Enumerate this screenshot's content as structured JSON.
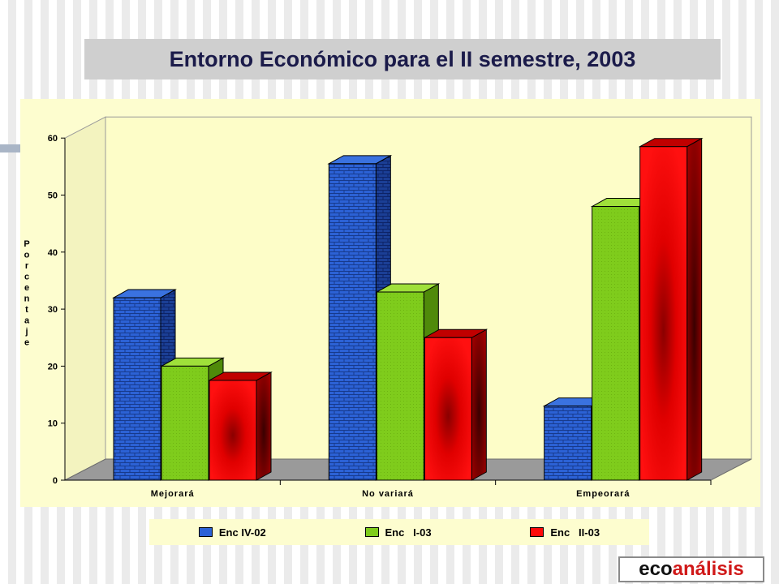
{
  "title": "Entorno Económico para el II semestre, 2003",
  "logo": {
    "part1": "eco",
    "part2": "análisis"
  },
  "colors": {
    "title_bg": "#cfcfcf",
    "title_text": "#1b1b4a",
    "plot_bg": "#fdfdcf"
  },
  "chart_data": {
    "type": "bar",
    "categories": [
      "Mejorará",
      "No variará",
      "Empeorará"
    ],
    "series": [
      {
        "name": "Enc IV-02",
        "values": [
          32,
          55.5,
          13
        ],
        "color": "#2c62d6"
      },
      {
        "name": "Enc   I-03",
        "values": [
          20,
          33,
          48
        ],
        "color": "#7fcc1c"
      },
      {
        "name": "Enc   II-03",
        "values": [
          17.5,
          25,
          58.5
        ],
        "color": "#ff0a0a"
      }
    ],
    "ylabel": "Porcentaje",
    "xlabel": "",
    "ylim": [
      0,
      60
    ],
    "yticks": [
      0,
      10,
      20,
      30,
      40,
      50,
      60
    ],
    "grid": false,
    "legend_position": "bottom",
    "style": "3d"
  }
}
